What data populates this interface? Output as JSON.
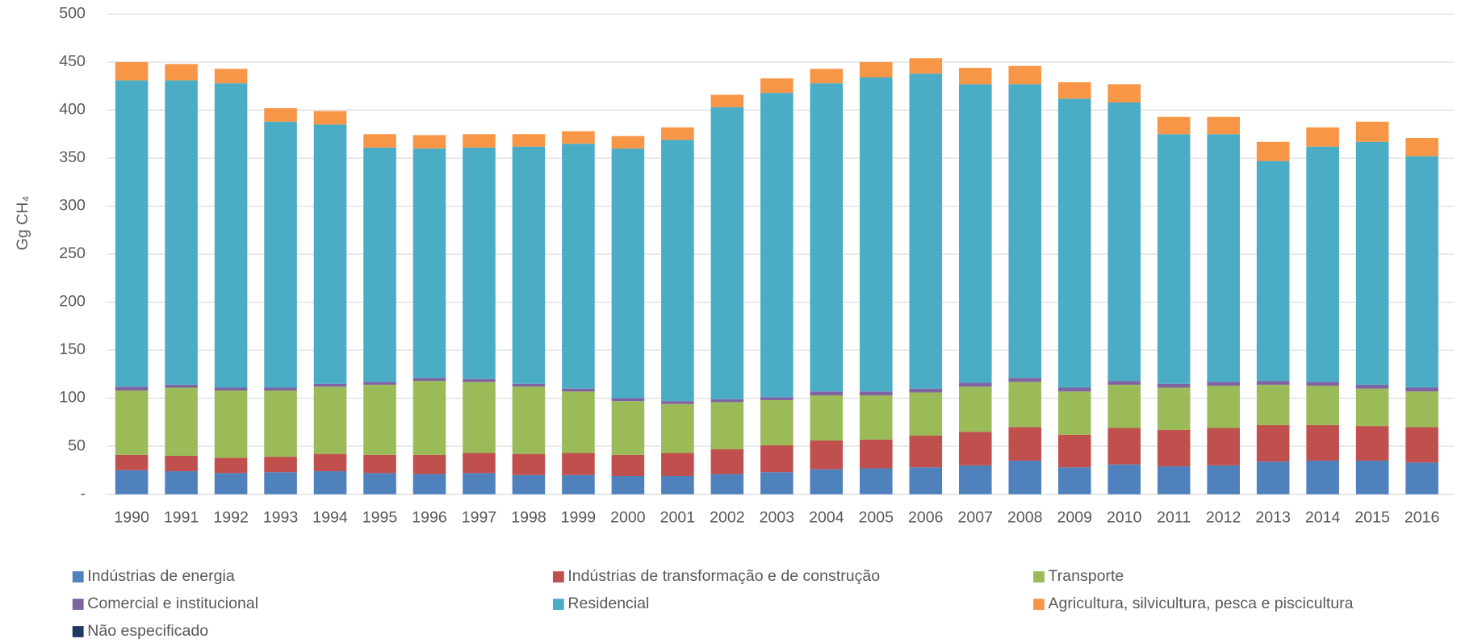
{
  "chart_data": {
    "type": "stacked_bar",
    "ylabel": "Gg CH₄",
    "categories": [
      "1990",
      "1991",
      "1992",
      "1993",
      "1994",
      "1995",
      "1996",
      "1997",
      "1998",
      "1999",
      "2000",
      "2001",
      "2002",
      "2003",
      "2004",
      "2005",
      "2006",
      "2007",
      "2008",
      "2009",
      "2010",
      "2011",
      "2012",
      "2013",
      "2014",
      "2015",
      "2016"
    ],
    "series": [
      {
        "name": "Indústrias de energia",
        "color": "#4f81bd",
        "values": [
          25,
          24,
          22,
          23,
          24,
          22,
          21,
          22,
          20,
          20,
          19,
          19,
          21,
          23,
          26,
          27,
          28,
          30,
          35,
          28,
          31,
          29,
          30,
          34,
          35,
          35,
          33
        ]
      },
      {
        "name": "Indústrias de transformação e de construção",
        "color": "#c0504d",
        "values": [
          16,
          16,
          16,
          16,
          18,
          19,
          20,
          21,
          22,
          23,
          22,
          24,
          26,
          28,
          30,
          30,
          33,
          35,
          35,
          34,
          38,
          38,
          39,
          38,
          37,
          36,
          37
        ]
      },
      {
        "name": "Transporte",
        "color": "#9bbb59",
        "values": [
          67,
          71,
          70,
          69,
          70,
          73,
          77,
          74,
          70,
          64,
          56,
          51,
          49,
          47,
          47,
          46,
          45,
          47,
          47,
          45,
          45,
          44,
          44,
          42,
          41,
          39,
          37
        ]
      },
      {
        "name": "Comercial e institucional",
        "color": "#8064a2",
        "values": [
          4,
          3,
          3,
          3,
          3,
          3,
          3,
          3,
          3,
          3,
          3,
          3,
          3,
          3,
          4,
          4,
          4,
          4,
          4,
          4,
          4,
          4,
          4,
          4,
          4,
          4,
          4
        ]
      },
      {
        "name": "Residencial",
        "color": "#4bacc6",
        "values": [
          319,
          317,
          317,
          277,
          270,
          244,
          239,
          241,
          247,
          255,
          260,
          272,
          304,
          317,
          321,
          327,
          328,
          311,
          306,
          301,
          290,
          260,
          258,
          229,
          245,
          253,
          241
        ]
      },
      {
        "name": "Agricultura, silvicultura, pesca e piscicultura",
        "color": "#f79646",
        "values": [
          19,
          17,
          15,
          14,
          14,
          14,
          14,
          14,
          13,
          13,
          13,
          13,
          13,
          15,
          15,
          16,
          16,
          17,
          19,
          17,
          19,
          18,
          18,
          20,
          20,
          21,
          19
        ]
      },
      {
        "name": "Não especificado",
        "color": "#1f3864",
        "values": [
          0,
          0,
          0,
          0,
          0,
          0,
          0,
          0,
          0,
          0,
          0,
          0,
          0,
          0,
          0,
          0,
          0,
          0,
          0,
          0,
          0,
          0,
          0,
          0,
          0,
          0,
          0
        ]
      }
    ],
    "ylim": [
      0,
      500
    ],
    "yticks": [
      {
        "value": 0,
        "label": "-"
      },
      50,
      100,
      150,
      200,
      250,
      300,
      350,
      400,
      450,
      500
    ],
    "grid": true,
    "legend": "bottom"
  }
}
